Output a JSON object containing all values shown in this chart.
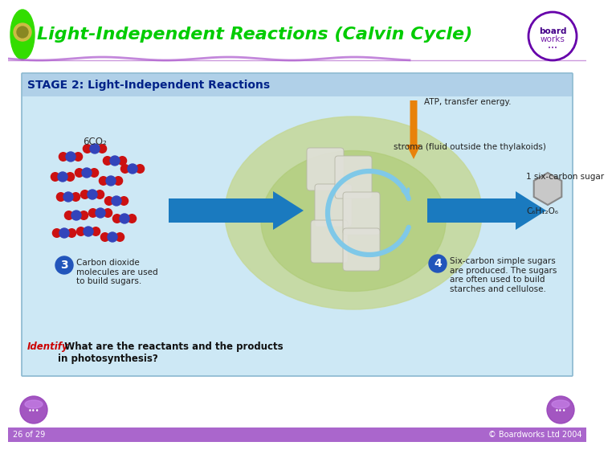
{
  "title": "Light-Independent Reactions (Calvin Cycle)",
  "title_color": "#00cc00",
  "background_color": "#ffffff",
  "slide_number": "26 of 29",
  "copyright": "© Boardworks Ltd 2004",
  "footer_bar_color": "#9b59b6",
  "footer_text_color": "#ffffff",
  "stage_label": "STAGE 2: Light-Independent Reactions",
  "atp_text": "ATP, transfer energy.",
  "stroma_text": "stroma (fluid outside the thylakoids)",
  "co2_label": "6CO₂",
  "sugar_label": "1 six-carbon sugar",
  "formula_label": "C₆H₁₂O₆",
  "step3_num": "3",
  "step3_text": "Carbon dioxide\nmolecules are used\nto build sugars.",
  "step4_num": "4",
  "step4_text": "Six-carbon simple sugars\nare produced. The sugars\nare often used to build\nstarches and cellulose.",
  "identify_label": "Identify",
  "identify_question": "  What are the reactants and the products\nin photosynthesis?",
  "identify_color": "#cc0000",
  "arrow_color": "#1a7abf",
  "cycle_arrow_color": "#7fc8e8",
  "orange_arrow_color": "#e8820a",
  "box_bg": "#cde8f5",
  "box_border": "#8ab8d0",
  "stage_bg": "#b0d0e8"
}
